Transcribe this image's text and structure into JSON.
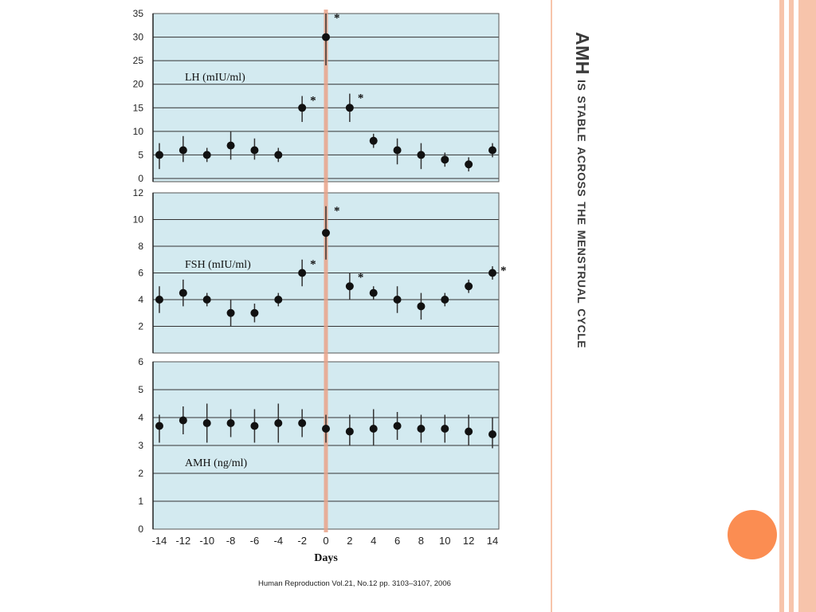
{
  "slide": {
    "title_strong": "AMH",
    "title_rest": " is stable across the menstrual cycle",
    "citation": "Human Reproduction Vol.21, No.12 pp. 3103–3107, 2006",
    "colors": {
      "panel_bg": "#d3eaf0",
      "gridline": "#333333",
      "marker": "#111111",
      "day0_line": "#e9a38a",
      "decor_orange": "#fb8d52",
      "decor_salmon": "#f7c4ab",
      "title_text": "#3a3a3a"
    }
  },
  "chart_data": [
    {
      "type": "scatter",
      "label": "LH (mIU/ml)",
      "ylim": [
        0,
        35
      ],
      "yticks": [
        0,
        5,
        10,
        15,
        20,
        25,
        30,
        35
      ],
      "xlim": [
        -14,
        14
      ],
      "grid": true,
      "points": [
        {
          "x": -14,
          "y": 5,
          "lo": 2,
          "hi": 7.5,
          "sig": false
        },
        {
          "x": -12,
          "y": 6,
          "lo": 3.5,
          "hi": 9,
          "sig": false
        },
        {
          "x": -10,
          "y": 5,
          "lo": 3.5,
          "hi": 6.5,
          "sig": false
        },
        {
          "x": -8,
          "y": 7,
          "lo": 4,
          "hi": 10,
          "sig": false
        },
        {
          "x": -6,
          "y": 6,
          "lo": 4,
          "hi": 8.5,
          "sig": false
        },
        {
          "x": -4,
          "y": 5,
          "lo": 3.5,
          "hi": 6.5,
          "sig": false
        },
        {
          "x": -2,
          "y": 15,
          "lo": 12,
          "hi": 17.5,
          "sig": true
        },
        {
          "x": 0,
          "y": 30,
          "lo": 24,
          "hi": 35,
          "sig": true
        },
        {
          "x": 2,
          "y": 15,
          "lo": 12,
          "hi": 18,
          "sig": true
        },
        {
          "x": 4,
          "y": 8,
          "lo": 6.5,
          "hi": 9.5,
          "sig": false
        },
        {
          "x": 6,
          "y": 6,
          "lo": 3,
          "hi": 8.5,
          "sig": false
        },
        {
          "x": 8,
          "y": 5,
          "lo": 2,
          "hi": 7.5,
          "sig": false
        },
        {
          "x": 10,
          "y": 4,
          "lo": 2.5,
          "hi": 5.5,
          "sig": false
        },
        {
          "x": 12,
          "y": 3,
          "lo": 1.5,
          "hi": 4.5,
          "sig": false
        },
        {
          "x": 14,
          "y": 6,
          "lo": 4.5,
          "hi": 7.5,
          "sig": false
        }
      ]
    },
    {
      "type": "scatter",
      "label": "FSH (mIU/ml)",
      "ylim": [
        0,
        12
      ],
      "yticks": [
        2,
        4,
        6,
        8,
        10,
        12
      ],
      "xlim": [
        -14,
        14
      ],
      "grid": true,
      "points": [
        {
          "x": -14,
          "y": 4,
          "lo": 3,
          "hi": 5,
          "sig": false
        },
        {
          "x": -12,
          "y": 4.5,
          "lo": 3.5,
          "hi": 5.5,
          "sig": false
        },
        {
          "x": -10,
          "y": 4,
          "lo": 3.5,
          "hi": 4.5,
          "sig": false
        },
        {
          "x": -8,
          "y": 3,
          "lo": 2,
          "hi": 4,
          "sig": false
        },
        {
          "x": -6,
          "y": 3,
          "lo": 2.3,
          "hi": 3.7,
          "sig": false
        },
        {
          "x": -4,
          "y": 4,
          "lo": 3.5,
          "hi": 4.5,
          "sig": false
        },
        {
          "x": -2,
          "y": 6,
          "lo": 5,
          "hi": 7,
          "sig": true
        },
        {
          "x": 0,
          "y": 9,
          "lo": 7,
          "hi": 11,
          "sig": true
        },
        {
          "x": 2,
          "y": 5,
          "lo": 4,
          "hi": 6,
          "sig": true
        },
        {
          "x": 4,
          "y": 4.5,
          "lo": 4,
          "hi": 5,
          "sig": false
        },
        {
          "x": 6,
          "y": 4,
          "lo": 3,
          "hi": 5,
          "sig": false
        },
        {
          "x": 8,
          "y": 3.5,
          "lo": 2.5,
          "hi": 4.5,
          "sig": false
        },
        {
          "x": 10,
          "y": 4,
          "lo": 3.5,
          "hi": 4.5,
          "sig": false
        },
        {
          "x": 12,
          "y": 5,
          "lo": 4.5,
          "hi": 5.5,
          "sig": false
        },
        {
          "x": 14,
          "y": 6,
          "lo": 5.5,
          "hi": 6.5,
          "sig": true
        }
      ]
    },
    {
      "type": "scatter",
      "label": "AMH (ng/ml)",
      "ylim": [
        0,
        6
      ],
      "yticks": [
        0,
        1,
        2,
        3,
        4,
        5,
        6
      ],
      "xlim": [
        -14,
        14
      ],
      "xticks": [
        -14,
        -12,
        -10,
        -8,
        -6,
        -4,
        -2,
        0,
        2,
        4,
        6,
        8,
        10,
        12,
        14
      ],
      "xlabel": "Days",
      "grid": true,
      "points": [
        {
          "x": -14,
          "y": 3.7,
          "lo": 3.1,
          "hi": 4.1,
          "sig": false
        },
        {
          "x": -12,
          "y": 3.9,
          "lo": 3.4,
          "hi": 4.4,
          "sig": false
        },
        {
          "x": -10,
          "y": 3.8,
          "lo": 3.1,
          "hi": 4.5,
          "sig": false
        },
        {
          "x": -8,
          "y": 3.8,
          "lo": 3.3,
          "hi": 4.3,
          "sig": false
        },
        {
          "x": -6,
          "y": 3.7,
          "lo": 3.1,
          "hi": 4.3,
          "sig": false
        },
        {
          "x": -4,
          "y": 3.8,
          "lo": 3.1,
          "hi": 4.5,
          "sig": false
        },
        {
          "x": -2,
          "y": 3.8,
          "lo": 3.3,
          "hi": 4.3,
          "sig": false
        },
        {
          "x": 0,
          "y": 3.6,
          "lo": 3.1,
          "hi": 4.1,
          "sig": false
        },
        {
          "x": 2,
          "y": 3.5,
          "lo": 3.0,
          "hi": 4.1,
          "sig": false
        },
        {
          "x": 4,
          "y": 3.6,
          "lo": 3.0,
          "hi": 4.3,
          "sig": false
        },
        {
          "x": 6,
          "y": 3.7,
          "lo": 3.2,
          "hi": 4.2,
          "sig": false
        },
        {
          "x": 8,
          "y": 3.6,
          "lo": 3.1,
          "hi": 4.1,
          "sig": false
        },
        {
          "x": 10,
          "y": 3.6,
          "lo": 3.1,
          "hi": 4.1,
          "sig": false
        },
        {
          "x": 12,
          "y": 3.5,
          "lo": 3.0,
          "hi": 4.1,
          "sig": false
        },
        {
          "x": 14,
          "y": 3.4,
          "lo": 2.9,
          "hi": 4.0,
          "sig": false
        }
      ]
    }
  ]
}
